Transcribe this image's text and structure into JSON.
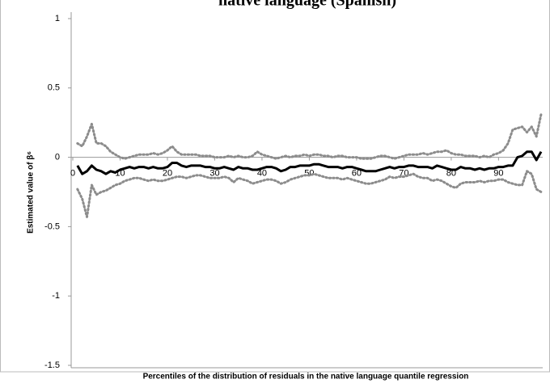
{
  "chart_data": {
    "type": "line",
    "title": "native language (Spanish)",
    "xlabel": "Percentiles of the distribution of residuals in the native language quantile regression",
    "ylabel": "Estimated value of β⁶",
    "x": [
      1,
      2,
      3,
      4,
      5,
      6,
      7,
      8,
      9,
      10,
      11,
      12,
      13,
      14,
      15,
      16,
      17,
      18,
      19,
      20,
      21,
      22,
      23,
      24,
      25,
      26,
      27,
      28,
      29,
      30,
      31,
      32,
      33,
      34,
      35,
      36,
      37,
      38,
      39,
      40,
      41,
      42,
      43,
      44,
      45,
      46,
      47,
      48,
      49,
      50,
      51,
      52,
      53,
      54,
      55,
      56,
      57,
      58,
      59,
      60,
      61,
      62,
      63,
      64,
      65,
      66,
      67,
      68,
      69,
      70,
      71,
      72,
      73,
      74,
      75,
      76,
      77,
      78,
      79,
      80,
      81,
      82,
      83,
      84,
      85,
      86,
      87,
      88,
      89,
      90,
      91,
      92,
      93,
      94,
      95,
      96,
      97,
      98,
      99
    ],
    "series": [
      {
        "color": "#000000",
        "style": "solid",
        "values": [
          -0.06,
          -0.12,
          -0.1,
          -0.06,
          -0.09,
          -0.1,
          -0.12,
          -0.1,
          -0.11,
          -0.09,
          -0.08,
          -0.07,
          -0.08,
          -0.07,
          -0.07,
          -0.08,
          -0.07,
          -0.08,
          -0.08,
          -0.07,
          -0.04,
          -0.04,
          -0.06,
          -0.07,
          -0.06,
          -0.06,
          -0.06,
          -0.07,
          -0.07,
          -0.08,
          -0.08,
          -0.07,
          -0.08,
          -0.09,
          -0.07,
          -0.08,
          -0.08,
          -0.09,
          -0.09,
          -0.08,
          -0.07,
          -0.07,
          -0.08,
          -0.1,
          -0.09,
          -0.07,
          -0.07,
          -0.06,
          -0.06,
          -0.06,
          -0.05,
          -0.05,
          -0.06,
          -0.07,
          -0.07,
          -0.07,
          -0.08,
          -0.07,
          -0.07,
          -0.08,
          -0.09,
          -0.1,
          -0.1,
          -0.1,
          -0.09,
          -0.08,
          -0.07,
          -0.08,
          -0.07,
          -0.07,
          -0.06,
          -0.06,
          -0.07,
          -0.07,
          -0.07,
          -0.08,
          -0.06,
          -0.07,
          -0.08,
          -0.09,
          -0.09,
          -0.07,
          -0.08,
          -0.08,
          -0.09,
          -0.08,
          -0.09,
          -0.08,
          -0.08,
          -0.07,
          -0.07,
          -0.06,
          -0.06,
          0,
          0.01,
          0.04,
          0.04,
          -0.02,
          0.04
        ]
      },
      {
        "color": "#8c8c8c",
        "style": "dotted",
        "values": [
          0.1,
          0.08,
          0.15,
          0.24,
          0.1,
          0.1,
          0.08,
          0.04,
          0.02,
          0,
          -0.01,
          0,
          0.01,
          0.02,
          0.02,
          0.02,
          0.03,
          0.02,
          0.03,
          0.05,
          0.08,
          0.04,
          0.02,
          0.02,
          0.02,
          0.02,
          0.01,
          0.01,
          0.01,
          0,
          0,
          0,
          0.01,
          0,
          0.01,
          0,
          0,
          0.01,
          0.04,
          0.02,
          0.01,
          0,
          -0.01,
          0,
          0.01,
          0,
          0.01,
          0.01,
          0.02,
          0.01,
          0.02,
          0.02,
          0.01,
          0.01,
          0,
          0.01,
          0.01,
          0,
          0,
          0,
          -0.01,
          -0.01,
          -0.01,
          0,
          0.01,
          0.01,
          0,
          -0.01,
          0,
          0.01,
          0.02,
          0.02,
          0.02,
          0.03,
          0.02,
          0.03,
          0.04,
          0.04,
          0.05,
          0.03,
          0.02,
          0.02,
          0.01,
          0.01,
          0.01,
          0,
          0.01,
          0,
          0.02,
          0.03,
          0.05,
          0.1,
          0.2,
          0.21,
          0.22,
          0.18,
          0.22,
          0.15,
          0.31
        ]
      },
      {
        "color": "#8c8c8c",
        "style": "dotted",
        "values": [
          -0.23,
          -0.3,
          -0.43,
          -0.2,
          -0.27,
          -0.25,
          -0.24,
          -0.22,
          -0.2,
          -0.19,
          -0.17,
          -0.16,
          -0.15,
          -0.15,
          -0.16,
          -0.17,
          -0.16,
          -0.17,
          -0.17,
          -0.16,
          -0.15,
          -0.14,
          -0.14,
          -0.15,
          -0.14,
          -0.13,
          -0.13,
          -0.14,
          -0.15,
          -0.15,
          -0.15,
          -0.14,
          -0.15,
          -0.18,
          -0.15,
          -0.16,
          -0.17,
          -0.19,
          -0.18,
          -0.17,
          -0.16,
          -0.16,
          -0.17,
          -0.19,
          -0.18,
          -0.16,
          -0.15,
          -0.14,
          -0.13,
          -0.13,
          -0.12,
          -0.13,
          -0.14,
          -0.15,
          -0.15,
          -0.15,
          -0.16,
          -0.15,
          -0.16,
          -0.17,
          -0.18,
          -0.19,
          -0.19,
          -0.18,
          -0.17,
          -0.16,
          -0.14,
          -0.15,
          -0.14,
          -0.14,
          -0.13,
          -0.12,
          -0.14,
          -0.15,
          -0.15,
          -0.17,
          -0.16,
          -0.17,
          -0.19,
          -0.21,
          -0.22,
          -0.19,
          -0.18,
          -0.18,
          -0.18,
          -0.17,
          -0.18,
          -0.17,
          -0.17,
          -0.16,
          -0.16,
          -0.18,
          -0.19,
          -0.2,
          -0.2,
          -0.1,
          -0.12,
          -0.23,
          -0.25
        ]
      }
    ],
    "xlim": [
      0,
      99
    ],
    "xticks": [
      0,
      10,
      20,
      30,
      40,
      50,
      60,
      70,
      80,
      90
    ],
    "ylim": [
      -1.5,
      1
    ],
    "yticks": [
      1,
      0.5,
      0,
      -0.5,
      -1,
      -1.5
    ]
  }
}
